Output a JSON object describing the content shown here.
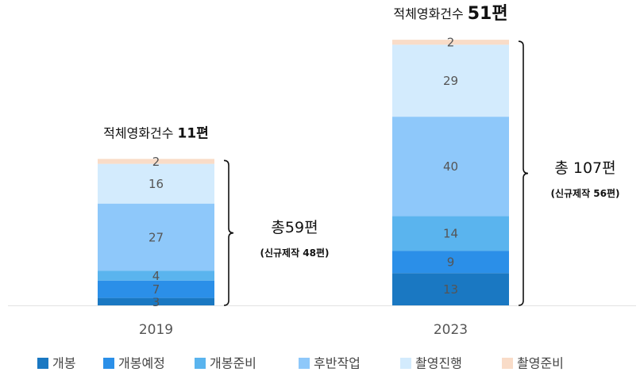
{
  "chart_data": {
    "type": "stacked_bar",
    "categories": [
      "2019",
      "2023"
    ],
    "series": [
      {
        "name": "개봉",
        "color": "#1a78c2",
        "values": [
          3,
          13
        ]
      },
      {
        "name": "개봉예정",
        "color": "#2b8fe8",
        "values": [
          7,
          9
        ]
      },
      {
        "name": "개봉준비",
        "color": "#5ab4ee",
        "values": [
          4,
          14
        ]
      },
      {
        "name": "후반작업",
        "color": "#8ec8fa",
        "values": [
          27,
          40
        ]
      },
      {
        "name": "촬영진행",
        "color": "#d3ebfd",
        "values": [
          16,
          29
        ]
      },
      {
        "name": "촬영준비",
        "color": "#f9dcc8",
        "values": [
          2,
          2
        ]
      }
    ],
    "annotations": [
      {
        "prefix": "적체영화건수",
        "count": "11편",
        "total": "총59편",
        "detail": "(신규제작 48편)"
      },
      {
        "prefix": "적체영화건수",
        "count": "51편",
        "total": "총 107편",
        "detail": "(신규제작 56편)"
      }
    ]
  }
}
